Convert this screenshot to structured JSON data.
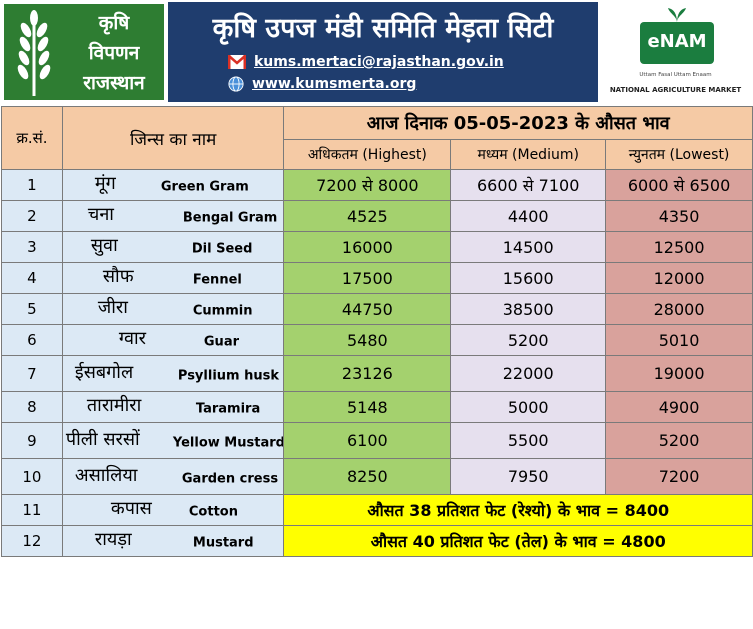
{
  "header": {
    "logo_left": {
      "line1": "कृषि",
      "line2": "विपणन",
      "line3": "राजस्थान"
    },
    "title": "कृषि उपज मंडी समिति मेड़ता सिटी",
    "email": "kums.mertaci@rajasthan.gov.in",
    "website": "www.kumsmerta.org",
    "email_icon": "gmail-icon",
    "web_icon": "globe-icon",
    "logo_right": {
      "brand": "eNAM",
      "tagline": "Uttam Fasal Uttam Enaam",
      "subtitle": "NATIONAL AGRICULTURE MARKET"
    }
  },
  "table": {
    "headers": {
      "serial": "क्र.सं.",
      "commodity": "जिन्स का नाम",
      "title": "आज दिनाक 05-05-2023 के औसत भाव",
      "highest": "अधिकतम (Highest)",
      "medium": "मध्यम (Medium)",
      "lowest": "न्युनतम (Lowest)"
    },
    "rows": [
      {
        "sn": "1",
        "hi": "मूंग",
        "en": "Green Gram",
        "high": "7200 से 8000",
        "mid": "6600 से 7100",
        "low": "6000 से 6500"
      },
      {
        "sn": "2",
        "hi": "चना",
        "en": "Bengal Gram",
        "high": "4525",
        "mid": "4400",
        "low": "4350"
      },
      {
        "sn": "3",
        "hi": "सुवा",
        "en": "Dil Seed",
        "high": "16000",
        "mid": "14500",
        "low": "12500"
      },
      {
        "sn": "4",
        "hi": "सौफ",
        "en": "Fennel",
        "high": "17500",
        "mid": "15600",
        "low": "12000"
      },
      {
        "sn": "5",
        "hi": "जीरा",
        "en": "Cummin",
        "high": "44750",
        "mid": "38500",
        "low": "28000"
      },
      {
        "sn": "6",
        "hi": "ग्वार",
        "en": "Guar",
        "high": "5480",
        "mid": "5200",
        "low": "5010"
      },
      {
        "sn": "7",
        "hi": "ईसबगोल",
        "en": "Psyllium husk",
        "high": "23126",
        "mid": "22000",
        "low": "19000"
      },
      {
        "sn": "8",
        "hi": "तारामीरा",
        "en": "Taramira",
        "high": "5148",
        "mid": "5000",
        "low": "4900"
      },
      {
        "sn": "9",
        "hi": "पीली सरसों",
        "en": "Yellow Mustard",
        "high": "6100",
        "mid": "5500",
        "low": "5200"
      },
      {
        "sn": "10",
        "hi": "असालिया",
        "en": "Garden cress",
        "high": "8250",
        "mid": "7950",
        "low": "7200"
      }
    ],
    "avg_rows": [
      {
        "sn": "11",
        "hi": "कपास",
        "en": "Cotton",
        "text": "औसत 38 प्रतिशत फेट (रेश्यो) के भाव = 8400"
      },
      {
        "sn": "12",
        "hi": "रायड़ा",
        "en": "Mustard",
        "text": "औसत 40 प्रतिशत फेट (तेल) के भाव = 4800"
      }
    ]
  },
  "colors": {
    "header_bg": "#1f3d6e",
    "logo_green": "#2e7d32",
    "table_header": "#f5caa5",
    "serial_name_bg": "#dce9f5",
    "highest_bg": "#a4d16e",
    "medium_bg": "#e6e0ee",
    "lowest_bg": "#d9a29c",
    "average_bg": "#ffff00"
  }
}
